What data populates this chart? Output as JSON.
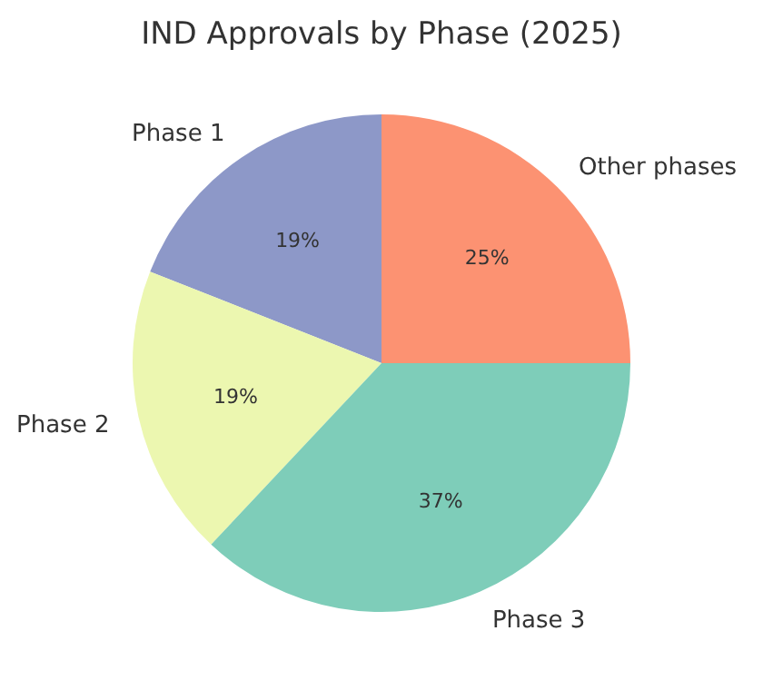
{
  "chart_data": {
    "type": "pie",
    "title": "IND Approvals by Phase (2025)",
    "categories": [
      "Phase 1",
      "Phase 2",
      "Phase 3",
      "Other phases"
    ],
    "values": [
      19,
      19,
      37,
      25
    ],
    "value_labels": [
      "19%",
      "19%",
      "37%",
      "25%"
    ],
    "colors": [
      "#8d98c8",
      "#ecf7b0",
      "#7ecdb9",
      "#fc9272"
    ]
  }
}
